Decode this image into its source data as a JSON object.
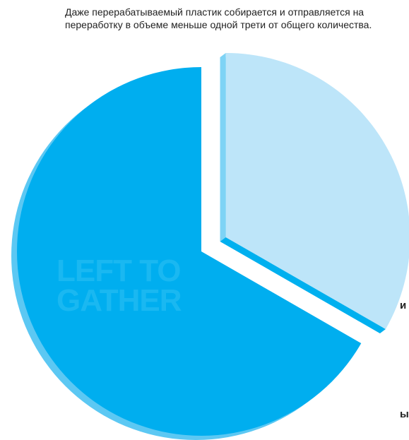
{
  "caption": "Даже перерабатываемый пластик собирается и отправляется на переработку в объеме меньше одной трети от общего количества.",
  "side_fragments": [
    "и",
    "ы"
  ],
  "chart_data": {
    "type": "pie",
    "title": "",
    "slices": [
      {
        "label": "LEFT TO GATHER",
        "value": 66.7,
        "color": "#00aeef",
        "label_color": "#1ab8f1",
        "exploded": false
      },
      {
        "label": "",
        "value": 33.3,
        "color": "#bde5f9",
        "exploded": true
      }
    ],
    "start_angle_deg": 0,
    "direction": "clockwise",
    "style": "3d-extruded"
  }
}
